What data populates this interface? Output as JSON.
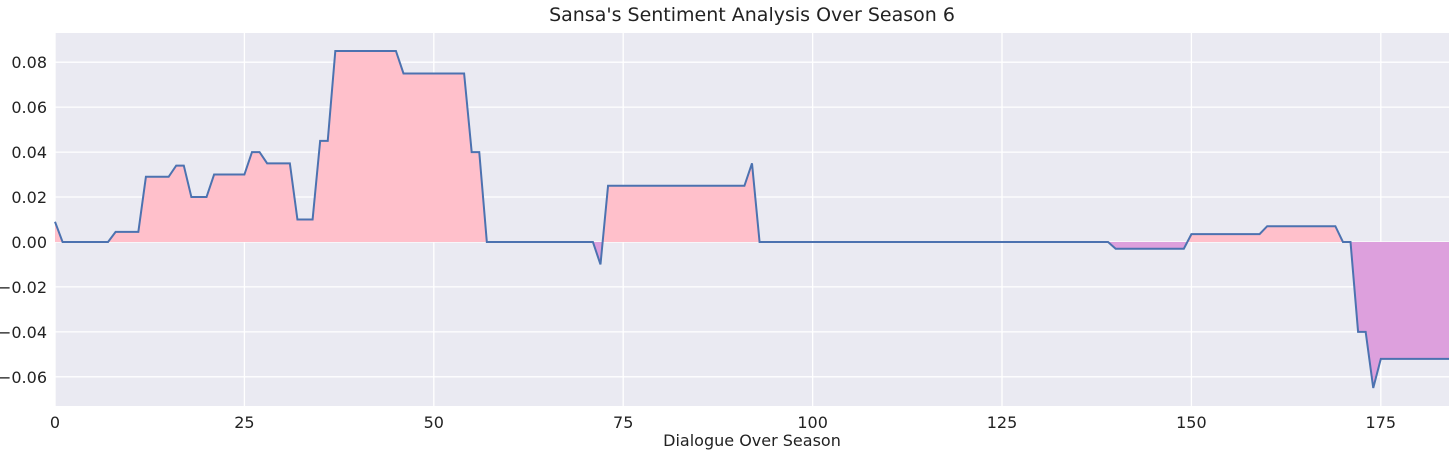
{
  "chart_data": {
    "type": "area",
    "title": "Sansa's Sentiment Analysis Over Season 6",
    "xlabel": "Dialogue Over Season",
    "ylabel": "",
    "xlim": [
      0,
      184
    ],
    "ylim": [
      -0.073,
      0.093
    ],
    "x_ticks": [
      0,
      25,
      50,
      75,
      100,
      125,
      150,
      175
    ],
    "y_ticks": [
      -0.06,
      -0.04,
      -0.02,
      0.0,
      0.02,
      0.04,
      0.06,
      0.08
    ],
    "grid": true,
    "colors": {
      "line": "#4c72b0",
      "positive_fill": "#ffc0cb",
      "negative_fill": "#dda0dd",
      "background": "#eaeaf2",
      "grid": "#ffffff"
    },
    "points": [
      [
        0,
        0.009
      ],
      [
        1,
        0.0
      ],
      [
        7,
        0.0
      ],
      [
        8,
        0.0045
      ],
      [
        11,
        0.0045
      ],
      [
        12,
        0.029
      ],
      [
        15,
        0.029
      ],
      [
        16,
        0.034
      ],
      [
        17,
        0.034
      ],
      [
        18,
        0.02
      ],
      [
        20,
        0.02
      ],
      [
        21,
        0.03
      ],
      [
        25,
        0.03
      ],
      [
        26,
        0.04
      ],
      [
        27,
        0.04
      ],
      [
        28,
        0.035
      ],
      [
        31,
        0.035
      ],
      [
        32,
        0.01
      ],
      [
        34,
        0.01
      ],
      [
        35,
        0.045
      ],
      [
        36,
        0.045
      ],
      [
        37,
        0.085
      ],
      [
        45,
        0.085
      ],
      [
        46,
        0.075
      ],
      [
        54,
        0.075
      ],
      [
        55,
        0.04
      ],
      [
        56,
        0.04
      ],
      [
        57,
        0.0
      ],
      [
        71,
        0.0
      ],
      [
        72,
        -0.01
      ],
      [
        73,
        0.025
      ],
      [
        91,
        0.025
      ],
      [
        92,
        0.035
      ],
      [
        93,
        0.0
      ],
      [
        139,
        0.0
      ],
      [
        140,
        -0.003
      ],
      [
        149,
        -0.003
      ],
      [
        150,
        0.0035
      ],
      [
        159,
        0.0035
      ],
      [
        160,
        0.007
      ],
      [
        169,
        0.007
      ],
      [
        170,
        0.0
      ],
      [
        171,
        0.0
      ],
      [
        172,
        -0.04
      ],
      [
        173,
        -0.04
      ],
      [
        174,
        -0.065
      ],
      [
        175,
        -0.052
      ],
      [
        184,
        -0.052
      ]
    ]
  }
}
